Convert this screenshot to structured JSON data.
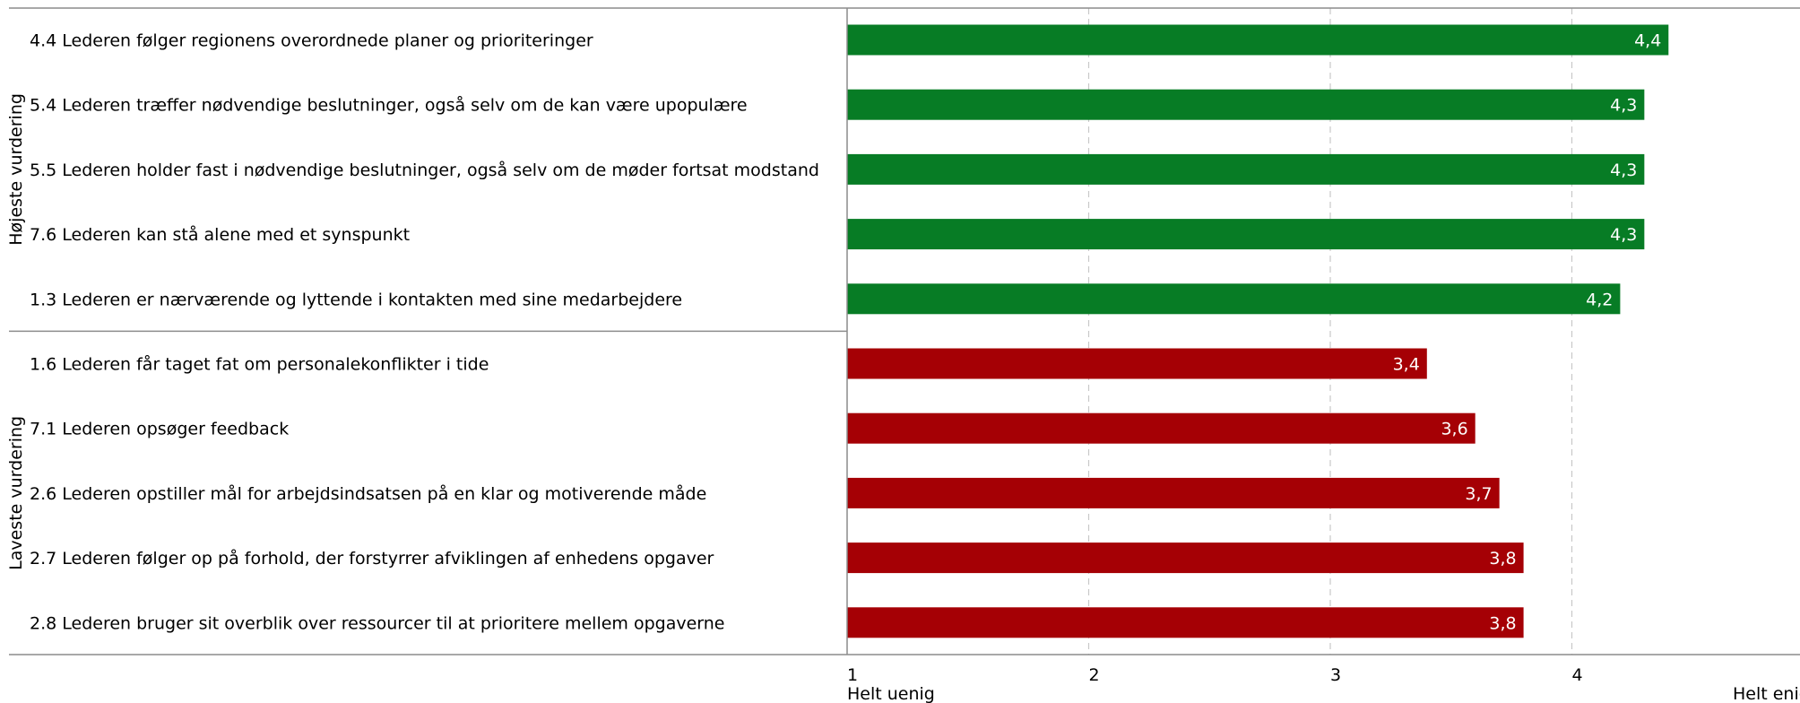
{
  "chart_data": {
    "type": "bar",
    "orientation": "horizontal",
    "xlim": [
      1,
      5
    ],
    "x_ticks": [
      "1",
      "2",
      "3",
      "4"
    ],
    "scale_labels": {
      "min": "Helt uenig",
      "max": "Helt enig"
    },
    "grid": "vertical dashed",
    "groups": [
      {
        "name": "Højeste vurdering",
        "color": "#077C25",
        "items": [
          {
            "label": "4.4 Lederen følger regionens overordnede planer og prioriteringer",
            "value": 4.4,
            "value_label": "4,4"
          },
          {
            "label": "5.4 Lederen træffer nødvendige beslutninger, også selv om de kan være upopulære",
            "value": 4.3,
            "value_label": "4,3"
          },
          {
            "label": "5.5 Lederen holder fast i nødvendige beslutninger, også selv om de møder fortsat modstand",
            "value": 4.3,
            "value_label": "4,3"
          },
          {
            "label": "7.6 Lederen kan stå alene med et synspunkt",
            "value": 4.3,
            "value_label": "4,3"
          },
          {
            "label": "1.3 Lederen er nærværende og lyttende i kontakten med sine medarbejdere",
            "value": 4.2,
            "value_label": "4,2"
          }
        ]
      },
      {
        "name": "Laveste vurdering",
        "color": "#A50005",
        "items": [
          {
            "label": "1.6 Lederen får taget fat om personalekonflikter i tide",
            "value": 3.4,
            "value_label": "3,4"
          },
          {
            "label": "7.1 Lederen opsøger feedback",
            "value": 3.6,
            "value_label": "3,6"
          },
          {
            "label": "2.6 Lederen opstiller mål for arbejdsindsatsen på en klar og motiverende måde",
            "value": 3.7,
            "value_label": "3,7"
          },
          {
            "label": "2.7 Lederen følger op på forhold, der forstyrrer afviklingen af enhedens opgaver",
            "value": 3.8,
            "value_label": "3,8"
          },
          {
            "label": "2.8 Lederen bruger sit overblik over ressourcer til at prioritere mellem opgaverne",
            "value": 3.8,
            "value_label": "3,8"
          }
        ]
      }
    ]
  }
}
